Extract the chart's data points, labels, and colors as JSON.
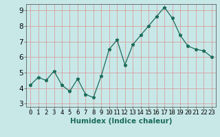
{
  "x": [
    0,
    1,
    2,
    3,
    4,
    5,
    6,
    7,
    8,
    9,
    10,
    11,
    12,
    13,
    14,
    15,
    16,
    17,
    18,
    19,
    20,
    21,
    22,
    23
  ],
  "y": [
    4.2,
    4.7,
    4.5,
    5.1,
    4.2,
    3.8,
    4.6,
    3.6,
    3.4,
    4.8,
    6.5,
    7.1,
    5.5,
    6.8,
    7.4,
    8.0,
    8.6,
    9.2,
    8.5,
    7.4,
    6.7,
    6.5,
    6.4,
    6.0
  ],
  "xlabel": "Humidex (Indice chaleur)",
  "line_color": "#1a6b5a",
  "marker": "*",
  "bg_color": "#c8e8e8",
  "grid_color": "#d4a0a0",
  "ylim": [
    2.8,
    9.4
  ],
  "xlim": [
    -0.5,
    23.5
  ],
  "yticks": [
    3,
    4,
    5,
    6,
    7,
    8,
    9
  ],
  "xticks": [
    0,
    1,
    2,
    3,
    4,
    5,
    6,
    7,
    8,
    9,
    10,
    11,
    12,
    13,
    14,
    15,
    16,
    17,
    18,
    19,
    20,
    21,
    22,
    23
  ],
  "xtick_labels": [
    "0",
    "1",
    "2",
    "3",
    "4",
    "5",
    "6",
    "7",
    "8",
    "9",
    "10",
    "11",
    "12",
    "13",
    "14",
    "15",
    "16",
    "17",
    "18",
    "19",
    "20",
    "21",
    "22",
    "23"
  ],
  "xlabel_fontsize": 7.5,
  "tick_fontsize": 6.5,
  "ytick_fontsize": 7.5
}
